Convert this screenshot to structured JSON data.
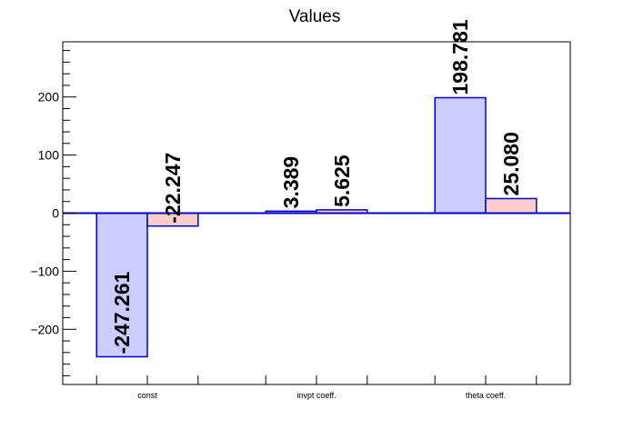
{
  "chart_data": {
    "type": "bar",
    "title": "Values",
    "xlabel": "",
    "ylabel": "",
    "categories": [
      "const",
      "invpt coeff.",
      "theta coeff."
    ],
    "series": [
      {
        "values": [
          -247.261,
          3.389,
          198.781
        ],
        "labels": [
          "-247.261",
          "3.389",
          "198.781"
        ],
        "fill": "#ccccff",
        "stroke": "#0000cc"
      },
      {
        "values": [
          -22.247,
          5.625,
          25.08
        ],
        "labels": [
          "-22.247",
          "5.625",
          "25.080"
        ],
        "fill": "#ffcccc",
        "stroke": "#0000cc"
      }
    ],
    "ylim": [
      -295,
      295
    ],
    "yticks": [
      -200,
      -100,
      0,
      100,
      200
    ],
    "ytick_labels": [
      "−200",
      "−100",
      "0",
      "100",
      "200"
    ],
    "zero_line_color": "#0000cc",
    "grid": false,
    "legend": "none"
  }
}
